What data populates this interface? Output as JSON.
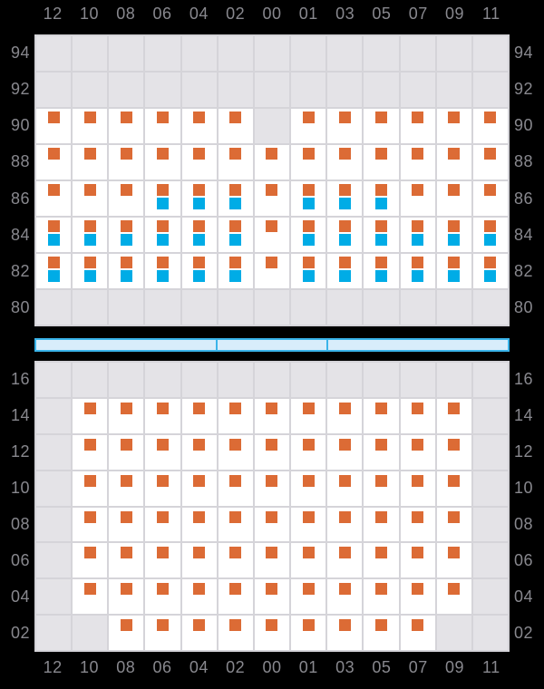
{
  "palette": {
    "background": "#000000",
    "cell_active": "#ffffff",
    "cell_empty": "#e4e3e7",
    "grid_line": "#d5d4d9",
    "label_color": "#88888e",
    "marker_orange": "#dc6b35",
    "marker_blue": "#00ace6",
    "bar_fill": "#d8edfb",
    "bar_border": "#3ab4ea"
  },
  "chart_data": {
    "type": "heatmap",
    "x_labels": [
      "12",
      "10",
      "08",
      "06",
      "04",
      "02",
      "00",
      "01",
      "03",
      "05",
      "07",
      "09",
      "11"
    ],
    "x_axis_positions": [
      "top",
      "bottom"
    ],
    "y_axis_positions": [
      "left",
      "right"
    ],
    "grid": "on",
    "cell_states": {
      "": "empty gray cell",
      "o": "orange marker",
      "ob": "orange marker with blue marker below"
    },
    "panels": [
      {
        "name": "upper-panel",
        "y_labels": [
          "94",
          "92",
          "90",
          "88",
          "86",
          "84",
          "82",
          "80"
        ],
        "cells": [
          [
            "",
            "",
            "",
            "",
            "",
            "",
            "",
            "",
            "",
            "",
            "",
            "",
            ""
          ],
          [
            "",
            "",
            "",
            "",
            "",
            "",
            "",
            "",
            "",
            "",
            "",
            "",
            ""
          ],
          [
            "o",
            "o",
            "o",
            "o",
            "o",
            "o",
            "",
            "o",
            "o",
            "o",
            "o",
            "o",
            "o"
          ],
          [
            "o",
            "o",
            "o",
            "o",
            "o",
            "o",
            "o",
            "o",
            "o",
            "o",
            "o",
            "o",
            "o"
          ],
          [
            "o",
            "o",
            "o",
            "ob",
            "ob",
            "ob",
            "o",
            "ob",
            "ob",
            "ob",
            "o",
            "o",
            "o"
          ],
          [
            "ob",
            "ob",
            "ob",
            "ob",
            "ob",
            "ob",
            "o",
            "ob",
            "ob",
            "ob",
            "ob",
            "ob",
            "ob"
          ],
          [
            "ob",
            "ob",
            "ob",
            "ob",
            "ob",
            "ob",
            "o",
            "ob",
            "ob",
            "ob",
            "ob",
            "ob",
            "ob"
          ],
          [
            "",
            "",
            "",
            "",
            "",
            "",
            "",
            "",
            "",
            "",
            "",
            "",
            ""
          ]
        ]
      },
      {
        "name": "lower-panel",
        "y_labels": [
          "16",
          "14",
          "12",
          "10",
          "08",
          "06",
          "04",
          "02"
        ],
        "cells": [
          [
            "",
            "",
            "",
            "",
            "",
            "",
            "",
            "",
            "",
            "",
            "",
            "",
            ""
          ],
          [
            "",
            "o",
            "o",
            "o",
            "o",
            "o",
            "o",
            "o",
            "o",
            "o",
            "o",
            "o",
            ""
          ],
          [
            "",
            "o",
            "o",
            "o",
            "o",
            "o",
            "o",
            "o",
            "o",
            "o",
            "o",
            "o",
            ""
          ],
          [
            "",
            "o",
            "o",
            "o",
            "o",
            "o",
            "o",
            "o",
            "o",
            "o",
            "o",
            "o",
            ""
          ],
          [
            "",
            "o",
            "o",
            "o",
            "o",
            "o",
            "o",
            "o",
            "o",
            "o",
            "o",
            "o",
            ""
          ],
          [
            "",
            "o",
            "o",
            "o",
            "o",
            "o",
            "o",
            "o",
            "o",
            "o",
            "o",
            "o",
            ""
          ],
          [
            "",
            "o",
            "o",
            "o",
            "o",
            "o",
            "o",
            "o",
            "o",
            "o",
            "o",
            "o",
            ""
          ],
          [
            "",
            "",
            "o",
            "o",
            "o",
            "o",
            "o",
            "o",
            "o",
            "o",
            "o",
            "",
            ""
          ]
        ]
      }
    ],
    "range_bar": {
      "segment_spans_columns": [
        5,
        3,
        5
      ]
    }
  }
}
